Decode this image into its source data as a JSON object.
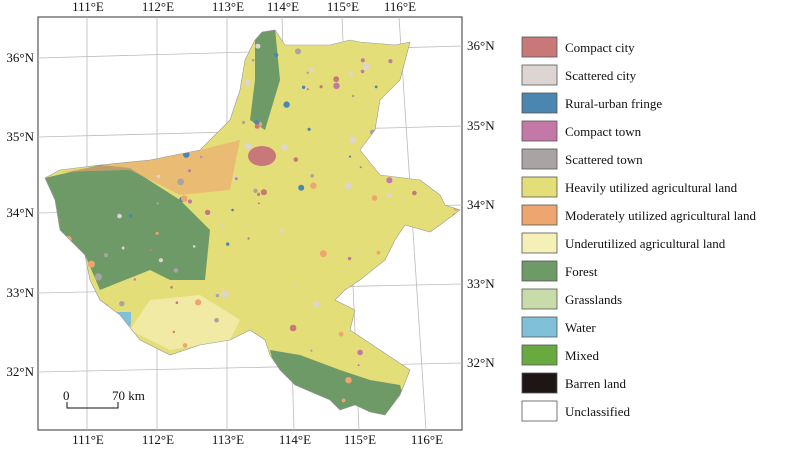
{
  "map": {
    "lon_labels": [
      "111°E",
      "112°E",
      "113°E",
      "114°E",
      "115°E",
      "116°E"
    ],
    "lat_labels": [
      "36°N",
      "35°N",
      "34°N",
      "33°N",
      "32°N"
    ],
    "scale_bar": {
      "start": "0",
      "end": "70 km"
    },
    "legend": [
      {
        "label": "Compact city",
        "color": "#c87878"
      },
      {
        "label": "Scattered city",
        "color": "#ddd5d2"
      },
      {
        "label": "Rural-urban fringe",
        "color": "#4a86b0"
      },
      {
        "label": "Compact town",
        "color": "#c478a8"
      },
      {
        "label": "Scattered town",
        "color": "#aaa3a3"
      },
      {
        "label": "Heavily utilized agricultural land",
        "color": "#e4de78"
      },
      {
        "label": "Moderately utilized agricultural land",
        "color": "#eea570"
      },
      {
        "label": "Underutilized agricultural land",
        "color": "#f5efb8"
      },
      {
        "label": "Forest",
        "color": "#6e9a68"
      },
      {
        "label": "Grasslands",
        "color": "#c8dcaa"
      },
      {
        "label": "Water",
        "color": "#80c0d8"
      },
      {
        "label": "Mixed",
        "color": "#68aa40"
      },
      {
        "label": "Barren land",
        "color": "#1e1614"
      },
      {
        "label": "Unclassified",
        "color": "#ffffff"
      }
    ]
  }
}
